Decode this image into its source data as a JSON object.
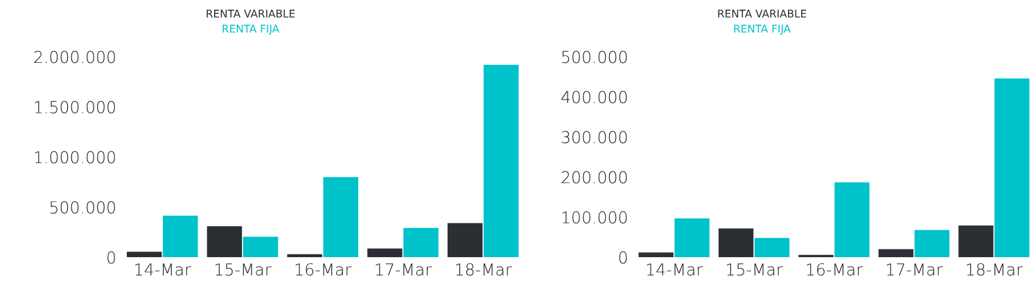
{
  "chart_data": [
    {
      "type": "bar",
      "categories": [
        "14-Mar",
        "15-Mar",
        "16-Mar",
        "17-Mar",
        "18-Mar"
      ],
      "legend": "top",
      "grid": false,
      "series": [
        {
          "name": "RENTA VARIABLE",
          "color": "#2b2f33",
          "values": [
            54000,
            309000,
            30000,
            88000,
            340000
          ]
        },
        {
          "name": "RENTA FIJA",
          "color": "#00c2cb",
          "values": [
            414000,
            205000,
            800000,
            292000,
            1920000
          ]
        }
      ],
      "ylim": [
        0,
        2000000
      ],
      "yticks": [
        {
          "value": 0,
          "label": "0"
        },
        {
          "value": 500000,
          "label": "500.000"
        },
        {
          "value": 1000000,
          "label": "1.000.000"
        },
        {
          "value": 1500000,
          "label": "1.500.000"
        },
        {
          "value": 2000000,
          "label": "2.000.000"
        }
      ]
    },
    {
      "type": "bar",
      "categories": [
        "14-Mar",
        "15-Mar",
        "16-Mar",
        "17-Mar",
        "18-Mar"
      ],
      "legend": "top",
      "grid": false,
      "series": [
        {
          "name": "RENTA VARIABLE",
          "color": "#2b2f33",
          "values": [
            12000,
            72000,
            6000,
            20000,
            79000
          ]
        },
        {
          "name": "RENTA FIJA",
          "color": "#00c2cb",
          "values": [
            97000,
            48000,
            187000,
            68000,
            446000
          ]
        }
      ],
      "ylim": [
        0,
        500000
      ],
      "yticks": [
        {
          "value": 0,
          "label": "0"
        },
        {
          "value": 100000,
          "label": "100.000"
        },
        {
          "value": 200000,
          "label": "200.000"
        },
        {
          "value": 300000,
          "label": "300.000"
        },
        {
          "value": 400000,
          "label": "400.000"
        },
        {
          "value": 500000,
          "label": "500.000"
        }
      ]
    }
  ]
}
